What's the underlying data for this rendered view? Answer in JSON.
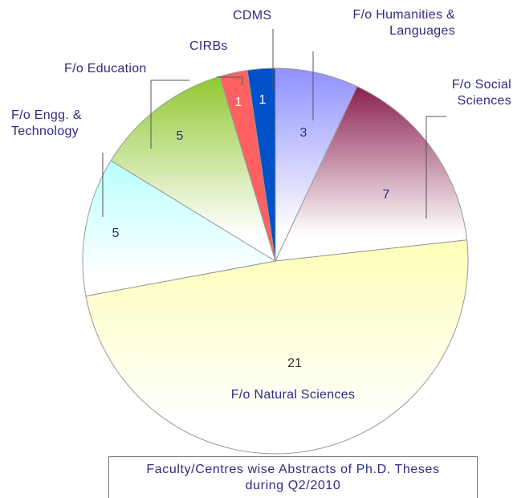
{
  "chart_data": {
    "type": "pie",
    "title": "Faculty/Centres wise Abstracts of Ph.D. Theses during Q2/2010",
    "categories": [
      "F/o Humanities & Languages",
      "F/o Social Sciences",
      "F/o Natural Sciences",
      "F/o Engg. & Technology",
      "F/o Education",
      "CIRBs",
      "CDMS"
    ],
    "values": [
      3,
      7,
      21,
      5,
      5,
      1,
      1
    ],
    "colors": [
      "#9090ff",
      "#8b2050",
      "#ffffb8",
      "#b8ffff",
      "#90c830",
      "#ff6060",
      "#0050c8"
    ]
  }
}
